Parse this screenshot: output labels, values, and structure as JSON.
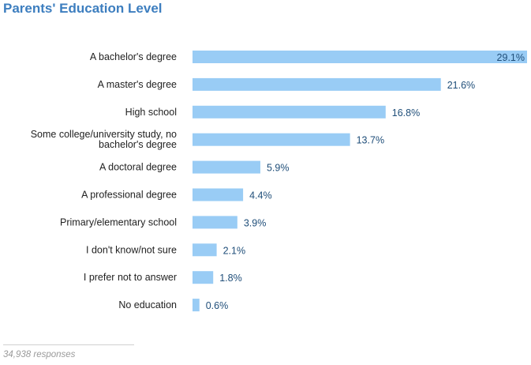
{
  "chart_data": {
    "type": "bar",
    "orientation": "horizontal",
    "title": "Parents' Education Level",
    "categories": [
      [
        "A bachelor's degree"
      ],
      [
        "A master's degree"
      ],
      [
        "High school"
      ],
      [
        "Some college/university study, no",
        "bachelor's degree"
      ],
      [
        "A doctoral degree"
      ],
      [
        "A professional degree"
      ],
      [
        "Primary/elementary school"
      ],
      [
        "I don't know/not sure"
      ],
      [
        "I prefer not to answer"
      ],
      [
        "No education"
      ]
    ],
    "values": [
      29.1,
      21.6,
      16.8,
      13.7,
      5.9,
      4.4,
      3.9,
      2.1,
      1.8,
      0.6
    ],
    "value_labels": [
      "29.1%",
      "21.6%",
      "16.8%",
      "13.7%",
      "5.9%",
      "4.4%",
      "3.9%",
      "2.1%",
      "1.8%",
      "0.6%"
    ],
    "unit": "%",
    "xlim": [
      0,
      29.1
    ],
    "grid": false,
    "legend": "none",
    "bar_color": "#99ccf5",
    "title_color": "#3d7ebf",
    "value_label_color": "#1f4e79"
  },
  "footer": {
    "responses": "34,938 responses"
  }
}
